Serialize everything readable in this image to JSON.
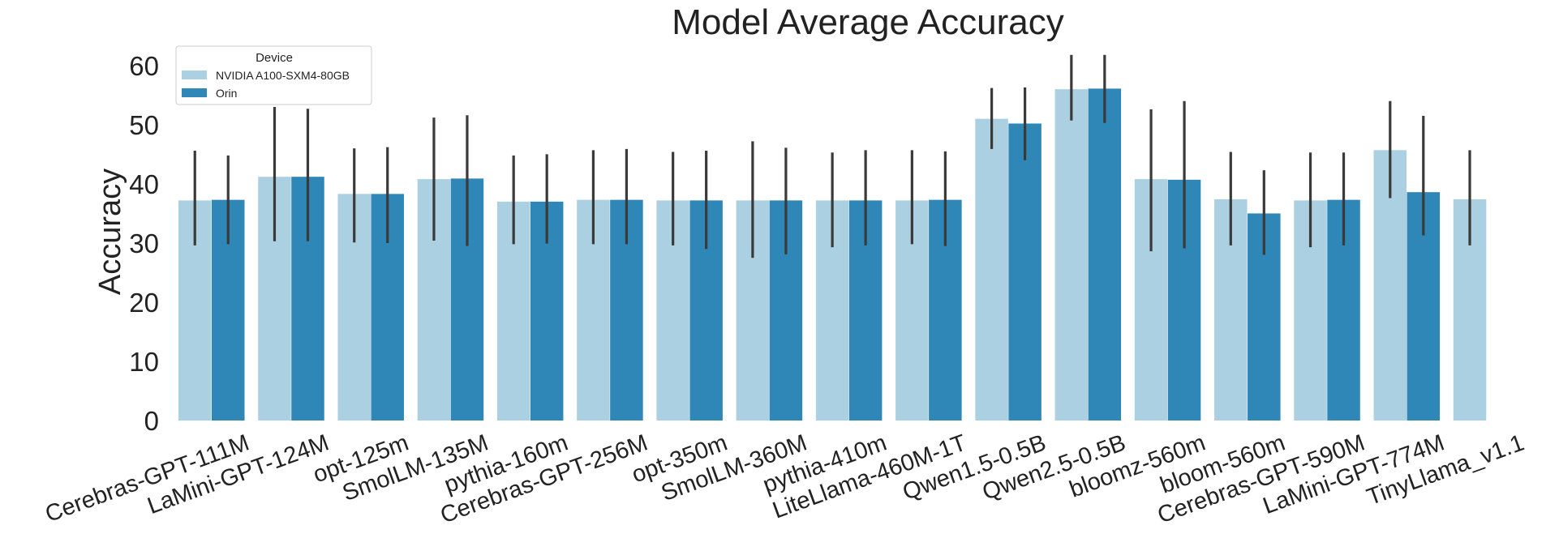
{
  "chart_data": {
    "type": "bar",
    "title": "Model Average Accuracy",
    "xlabel": "",
    "ylabel": "Accuracy",
    "ylim": [
      0,
      63
    ],
    "yticks": [
      0,
      10,
      20,
      30,
      40,
      50,
      60
    ],
    "grid": false,
    "legend": {
      "title": "Device",
      "placement": "top-left"
    },
    "categories": [
      "Cerebras-GPT-111M",
      "LaMini-GPT-124M",
      "opt-125m",
      "SmolLM-135M",
      "pythia-160m",
      "Cerebras-GPT-256M",
      "opt-350m",
      "SmolLM-360M",
      "pythia-410m",
      "LiteLlama-460M-1T",
      "Qwen1.5-0.5B",
      "Qwen2.5-0.5B",
      "bloomz-560m",
      "bloom-560m",
      "Cerebras-GPT-590M",
      "LaMini-GPT-774M",
      "TinyLlama_v1.1"
    ],
    "series": [
      {
        "name": "NVIDIA A100-SXM4-80GB",
        "color": "#abd0e2",
        "values": [
          37.2,
          41.2,
          38.3,
          40.8,
          37.0,
          37.3,
          37.2,
          37.2,
          37.2,
          37.2,
          51.0,
          56.0,
          40.8,
          37.4,
          37.2,
          45.7,
          37.4
        ],
        "error_low": [
          29.6,
          30.3,
          30.1,
          30.4,
          29.8,
          29.8,
          29.6,
          27.5,
          29.3,
          29.8,
          45.9,
          50.7,
          28.6,
          29.6,
          29.3,
          37.6,
          29.6
        ],
        "error_high": [
          45.6,
          53.0,
          46.0,
          51.2,
          44.8,
          45.7,
          45.4,
          47.2,
          45.3,
          45.7,
          56.2,
          61.8,
          52.6,
          45.4,
          45.3,
          54.0,
          45.7
        ]
      },
      {
        "name": "Orin",
        "color": "#2e87b6",
        "values": [
          37.3,
          41.2,
          38.3,
          40.9,
          37.0,
          37.3,
          37.2,
          37.2,
          37.2,
          37.3,
          50.2,
          56.1,
          40.7,
          35.0,
          37.3,
          38.6,
          null
        ],
        "error_low": [
          29.8,
          30.3,
          30.0,
          29.5,
          29.9,
          29.8,
          29.0,
          28.1,
          29.6,
          29.5,
          44.0,
          50.3,
          29.1,
          28.0,
          29.6,
          31.3,
          null
        ],
        "error_high": [
          44.8,
          52.7,
          46.2,
          51.6,
          45.0,
          45.9,
          45.6,
          46.1,
          45.7,
          45.5,
          56.3,
          61.8,
          54.0,
          42.3,
          45.3,
          51.5,
          null
        ]
      }
    ]
  }
}
